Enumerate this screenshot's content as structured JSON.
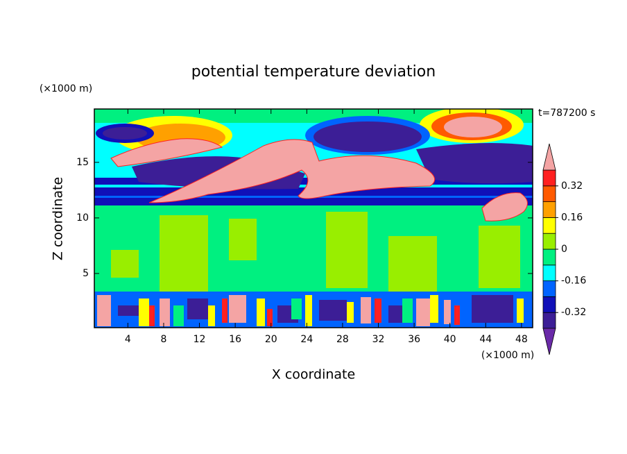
{
  "chart_data": {
    "type": "contour",
    "title": "potential temperature deviation",
    "x_label": "X coordinate",
    "y_label": "Z coordinate",
    "x_unit": "(×1000 m)",
    "y_unit": "(×1000 m)",
    "time_label": "t=787200 s",
    "xlim": [
      0.25,
      49.25
    ],
    "xticks": [
      4,
      8,
      12,
      16,
      20,
      24,
      28,
      32,
      36,
      40,
      44,
      48
    ],
    "ylim": [
      0.125,
      19.8
    ],
    "yticks": [
      5,
      10,
      15
    ],
    "colorbar": {
      "levels": [
        -0.4,
        -0.32,
        -0.24,
        -0.16,
        -0.08,
        0,
        0.08,
        0.16,
        0.24,
        0.32,
        0.4
      ],
      "colors": [
        "#6a2aa8",
        "#3c1e96",
        "#1010b8",
        "#0064ff",
        "#00ffff",
        "#00f080",
        "#99ee00",
        "#ffff00",
        "#ffa000",
        "#ff5a00",
        "#ff2020",
        "#f4a4a4"
      ],
      "ticks": [
        -0.32,
        -0.16,
        0,
        0.16,
        0.32
      ]
    }
  }
}
